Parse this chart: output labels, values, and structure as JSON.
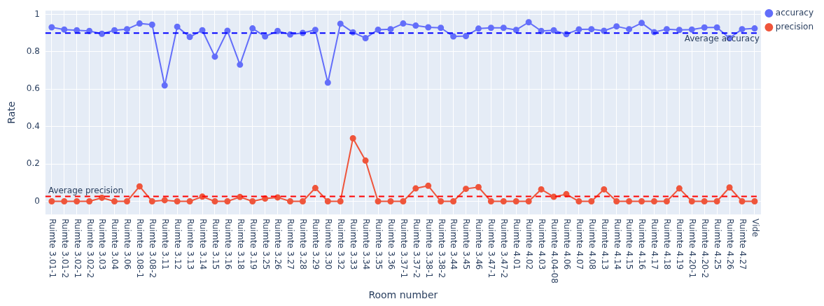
{
  "chart_data": {
    "type": "line",
    "xlabel": "Room number",
    "ylabel": "Rate",
    "categories": [
      "Ruimte 3.01-1",
      "Ruimte 3.01-2",
      "Ruimte 3.02-1",
      "Ruimte 3.02-2",
      "Ruimte 3.03",
      "Ruimte 3.04",
      "Ruimte 3.06",
      "Ruimte 3.08-1",
      "Ruimte 3.08-2",
      "Ruimte 3.11",
      "Ruimte 3.12",
      "Ruimte 3.13",
      "Ruimte 3.14",
      "Ruimte 3.15",
      "Ruimte 3.16",
      "Ruimte 3.18",
      "Ruimte 3.19",
      "Ruimte 3.25",
      "Ruimte 3.26",
      "Ruimte 3.27",
      "Ruimte 3.28",
      "Ruimte 3.29",
      "Ruimte 3.30",
      "Ruimte 3.32",
      "Ruimte 3.33",
      "Ruimte 3.34",
      "Ruimte 3.35",
      "Ruimte 3.36",
      "Ruimte 3.37-1",
      "Ruimte 3.37-2",
      "Ruimte 3.38-1",
      "Ruimte 3.38-2",
      "Ruimte 3.44",
      "Ruimte 3.45",
      "Ruimte 3.46",
      "Ruimte 3.47-1",
      "Ruimte 3.47-2",
      "Ruimte 4.01",
      "Ruimte 4.02",
      "Ruimte 4.03",
      "Ruimte 4.04-08",
      "Ruimte 4.06",
      "Ruimte 4.07",
      "Ruimte 4.08",
      "Ruimte 4.13",
      "Ruimte 4.14",
      "Ruimte 4.15",
      "Ruimte 4.16",
      "Ruimte 4.17",
      "Ruimte 4.18",
      "Ruimte 4.19",
      "Ruimte 4.20-1",
      "Ruimte 4.20-2",
      "Ruimte 4.25",
      "Ruimte 4.26",
      "Ruimte 4.27",
      "Vide"
    ],
    "series": [
      {
        "name": "accuracy",
        "color": "#636efa",
        "values": [
          0.931,
          0.919,
          0.915,
          0.911,
          0.896,
          0.915,
          0.921,
          0.951,
          0.945,
          0.62,
          0.934,
          0.879,
          0.915,
          0.774,
          0.912,
          0.731,
          0.925,
          0.882,
          0.911,
          0.892,
          0.901,
          0.917,
          0.635,
          0.95,
          0.904,
          0.873,
          0.918,
          0.921,
          0.951,
          0.94,
          0.931,
          0.928,
          0.882,
          0.884,
          0.924,
          0.928,
          0.928,
          0.917,
          0.958,
          0.911,
          0.915,
          0.894,
          0.92,
          0.921,
          0.912,
          0.936,
          0.921,
          0.954,
          0.905,
          0.921,
          0.917,
          0.919,
          0.93,
          0.93,
          0.873,
          0.921,
          0.925
        ]
      },
      {
        "name": "precision",
        "color": "#ef553b",
        "values": [
          0,
          0,
          0,
          0,
          0.019,
          0,
          0,
          0.08,
          0,
          0.006,
          0,
          0,
          0.025,
          0,
          0,
          0.023,
          0,
          0.015,
          0.021,
          0,
          0,
          0.071,
          0,
          0,
          0.337,
          0.218,
          0,
          0,
          0,
          0.069,
          0.083,
          0,
          0,
          0.067,
          0.076,
          0,
          0,
          0,
          0,
          0.064,
          0.024,
          0.038,
          0,
          0,
          0.064,
          0,
          0,
          0,
          0,
          0,
          0.069,
          0,
          0,
          0,
          0.074,
          0,
          0
        ]
      }
    ],
    "ylim": [
      -0.07,
      1.02
    ],
    "yticks": [
      0,
      0.2,
      0.4,
      0.6,
      0.8,
      1
    ],
    "ref_lines": [
      {
        "axis": "y",
        "value": 0.9,
        "label": "Average accuracy",
        "color": "#0000ff",
        "line_style": "dashed"
      },
      {
        "axis": "y",
        "value": 0.026,
        "label": "Average precision",
        "color": "#ff0000",
        "line_style": "dashed"
      }
    ],
    "grid": true,
    "legend": "top right",
    "marker": "circle",
    "line_style": "solid"
  }
}
